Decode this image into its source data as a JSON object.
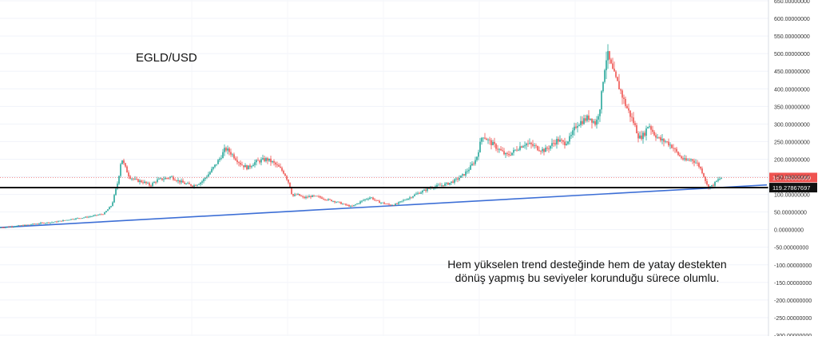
{
  "chart_data": {
    "type": "candlestick",
    "title": "EGLD/USD",
    "annotation_lines": [
      "Hem yükselen trend desteğinde hem de yatay destekten",
      "dönüş yapmış bu seviyeler korunduğu sürece olumlu."
    ],
    "y_axis": {
      "ylim": [
        -300,
        650
      ],
      "ticks": [
        650,
        600,
        550,
        500,
        450,
        400,
        350,
        300,
        250,
        200,
        150,
        100,
        50,
        0,
        -50,
        -100,
        -150,
        -200,
        -250,
        -300
      ],
      "tick_labels": [
        "650.00000000",
        "600.00000000",
        "550.00000000",
        "500.00000000",
        "450.00000000",
        "400.00000000",
        "350.00000000",
        "300.00000000",
        "250.00000000",
        "200.00000000",
        "150.00000000",
        "100.00000000",
        "50.00000000",
        "0.00000000",
        "-50.00000000",
        "-100.00000000",
        "-150.00000000",
        "-200.00000000",
        "-250.00000000",
        "-300.00000000"
      ]
    },
    "current_price": {
      "label": "147.95000000",
      "value": 147.95
    },
    "horizontal_support": {
      "label": "119.27867697",
      "value": 119.27867697
    },
    "trendline": {
      "points": [
        [
          0,
          6
        ],
        [
          960,
          127
        ]
      ]
    },
    "price_path": [
      [
        0,
        6
      ],
      [
        30,
        12
      ],
      [
        50,
        18
      ],
      [
        70,
        22
      ],
      [
        90,
        30
      ],
      [
        110,
        36
      ],
      [
        130,
        45
      ],
      [
        140,
        70
      ],
      [
        148,
        140
      ],
      [
        152,
        205
      ],
      [
        156,
        180
      ],
      [
        162,
        150
      ],
      [
        170,
        140
      ],
      [
        180,
        135
      ],
      [
        188,
        125
      ],
      [
        196,
        140
      ],
      [
        206,
        145
      ],
      [
        214,
        150
      ],
      [
        222,
        140
      ],
      [
        232,
        130
      ],
      [
        242,
        125
      ],
      [
        252,
        135
      ],
      [
        262,
        160
      ],
      [
        270,
        185
      ],
      [
        276,
        205
      ],
      [
        282,
        230
      ],
      [
        288,
        220
      ],
      [
        294,
        205
      ],
      [
        302,
        185
      ],
      [
        310,
        175
      ],
      [
        318,
        190
      ],
      [
        326,
        196
      ],
      [
        334,
        200
      ],
      [
        342,
        190
      ],
      [
        350,
        175
      ],
      [
        356,
        160
      ],
      [
        362,
        130
      ],
      [
        366,
        95
      ],
      [
        372,
        100
      ],
      [
        380,
        90
      ],
      [
        390,
        95
      ],
      [
        400,
        92
      ],
      [
        410,
        85
      ],
      [
        420,
        80
      ],
      [
        430,
        72
      ],
      [
        440,
        65
      ],
      [
        448,
        75
      ],
      [
        456,
        85
      ],
      [
        464,
        92
      ],
      [
        472,
        80
      ],
      [
        480,
        75
      ],
      [
        488,
        70
      ],
      [
        496,
        72
      ],
      [
        504,
        82
      ],
      [
        512,
        90
      ],
      [
        520,
        100
      ],
      [
        530,
        110
      ],
      [
        540,
        120
      ],
      [
        550,
        125
      ],
      [
        560,
        130
      ],
      [
        570,
        140
      ],
      [
        580,
        155
      ],
      [
        588,
        175
      ],
      [
        596,
        200
      ],
      [
        604,
        270
      ],
      [
        610,
        255
      ],
      [
        618,
        240
      ],
      [
        626,
        225
      ],
      [
        634,
        210
      ],
      [
        642,
        220
      ],
      [
        650,
        235
      ],
      [
        658,
        245
      ],
      [
        666,
        240
      ],
      [
        674,
        230
      ],
      [
        682,
        225
      ],
      [
        690,
        240
      ],
      [
        698,
        255
      ],
      [
        706,
        245
      ],
      [
        714,
        260
      ],
      [
        722,
        300
      ],
      [
        730,
        310
      ],
      [
        738,
        320
      ],
      [
        746,
        300
      ],
      [
        752,
        360
      ],
      [
        756,
        450
      ],
      [
        760,
        500
      ],
      [
        764,
        470
      ],
      [
        770,
        430
      ],
      [
        776,
        400
      ],
      [
        782,
        360
      ],
      [
        788,
        330
      ],
      [
        794,
        300
      ],
      [
        800,
        260
      ],
      [
        806,
        270
      ],
      [
        812,
        300
      ],
      [
        818,
        275
      ],
      [
        826,
        255
      ],
      [
        834,
        250
      ],
      [
        842,
        235
      ],
      [
        850,
        210
      ],
      [
        858,
        195
      ],
      [
        866,
        200
      ],
      [
        874,
        185
      ],
      [
        880,
        160
      ],
      [
        886,
        120
      ],
      [
        892,
        125
      ],
      [
        898,
        140
      ],
      [
        904,
        148
      ]
    ]
  }
}
